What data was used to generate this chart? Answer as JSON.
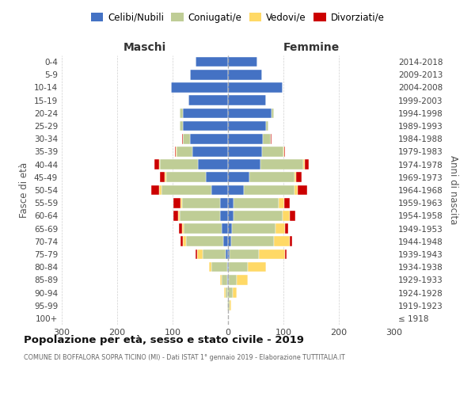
{
  "age_groups": [
    "100+",
    "95-99",
    "90-94",
    "85-89",
    "80-84",
    "75-79",
    "70-74",
    "65-69",
    "60-64",
    "55-59",
    "50-54",
    "45-49",
    "40-44",
    "35-39",
    "30-34",
    "25-29",
    "20-24",
    "15-19",
    "10-14",
    "5-9",
    "0-4"
  ],
  "birth_years": [
    "≤ 1918",
    "1919-1923",
    "1924-1928",
    "1929-1933",
    "1934-1938",
    "1939-1943",
    "1944-1948",
    "1949-1953",
    "1954-1958",
    "1959-1963",
    "1964-1968",
    "1969-1973",
    "1974-1978",
    "1979-1983",
    "1984-1988",
    "1989-1993",
    "1994-1998",
    "1999-2003",
    "2004-2008",
    "2009-2013",
    "2014-2018"
  ],
  "maschi_celibi": [
    0,
    0,
    0,
    1,
    2,
    4,
    8,
    12,
    15,
    15,
    30,
    40,
    55,
    65,
    68,
    82,
    82,
    72,
    103,
    68,
    58
  ],
  "maschi_coniugati": [
    0,
    2,
    5,
    10,
    28,
    42,
    68,
    68,
    72,
    68,
    90,
    72,
    68,
    28,
    14,
    5,
    5,
    0,
    0,
    0,
    0
  ],
  "maschi_vedovi": [
    0,
    0,
    2,
    3,
    5,
    10,
    5,
    3,
    3,
    3,
    4,
    3,
    2,
    1,
    0,
    0,
    0,
    0,
    0,
    0,
    0
  ],
  "maschi_divorziati": [
    0,
    0,
    0,
    0,
    0,
    2,
    5,
    5,
    8,
    12,
    15,
    8,
    8,
    2,
    1,
    0,
    0,
    0,
    0,
    0,
    0
  ],
  "femmine_nubili": [
    0,
    0,
    0,
    1,
    2,
    3,
    5,
    7,
    10,
    10,
    28,
    38,
    58,
    62,
    63,
    68,
    78,
    68,
    98,
    62,
    53
  ],
  "femmine_coniugate": [
    0,
    3,
    8,
    14,
    33,
    52,
    78,
    78,
    88,
    82,
    92,
    82,
    78,
    38,
    14,
    5,
    5,
    0,
    0,
    0,
    0
  ],
  "femmine_vedove": [
    0,
    2,
    8,
    20,
    33,
    48,
    28,
    18,
    14,
    10,
    5,
    3,
    2,
    1,
    0,
    0,
    0,
    0,
    0,
    0,
    0
  ],
  "femmine_divorziate": [
    0,
    0,
    0,
    0,
    0,
    2,
    5,
    5,
    10,
    10,
    18,
    10,
    8,
    2,
    1,
    0,
    0,
    0,
    0,
    0,
    0
  ],
  "color_celibi": "#4472C4",
  "color_coniugati": "#BFCD96",
  "color_vedovi": "#FFD966",
  "color_divorziati": "#CC0000",
  "legend_labels": [
    "Celibi/Nubili",
    "Coniugati/e",
    "Vedovi/e",
    "Divorziati/e"
  ],
  "title": "Popolazione per età, sesso e stato civile - 2019",
  "subtitle": "COMUNE DI BOFFALORA SOPRA TICINO (MI) - Dati ISTAT 1° gennaio 2019 - Elaborazione TUTTITALIA.IT",
  "label_maschi": "Maschi",
  "label_femmine": "Femmine",
  "ylabel_left": "Fasce di età",
  "ylabel_right": "Anni di nascita",
  "xlim": 300,
  "bg_color": "#ffffff",
  "grid_color": "#cccccc"
}
